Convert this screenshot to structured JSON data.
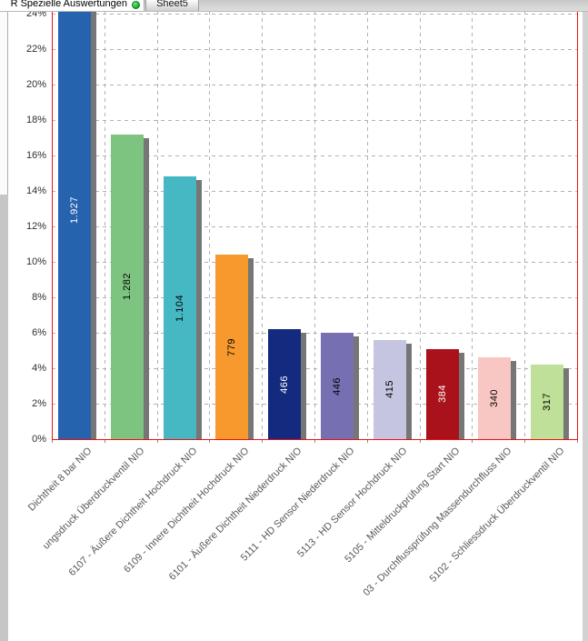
{
  "tab_bar": {
    "tabs": [
      {
        "label": "R Spezielle Auswertungen",
        "active": true,
        "status_icon": "green-circle"
      },
      {
        "label": "Sheet5",
        "active": false
      }
    ],
    "status_icon_color": "#14a82e"
  },
  "chart_data": {
    "type": "bar",
    "title": "",
    "xlabel": "",
    "ylabel": "",
    "y_unit": "%",
    "ylim_visible": [
      0,
      24
    ],
    "y_tick_step": 2,
    "grid": "dashed-gray",
    "legend": "none",
    "plot_border_color": "#ee1111",
    "bar_shadow_color": "#767676",
    "categories": [
      "Dichtheit 8 bar NIO",
      "ungsdruck Überdruckventil NIO",
      "6107 - Äußere Dichtheit Hochdruck NIO",
      "6109 - Innere Dichtheit Hochdruck NIO",
      "6101 - Äußere Dichtheit Niederdruck NIO",
      "5111 - HD Sensor Niederdruck NIO",
      "5113 - HD Sensor Hochdruck NIO",
      "5105 - Mitteldruckprüfung Start NIO",
      "03 - Durchflussprüfung Massendurchfluss NIO",
      "5102 - Schliessdruck Überdruckventil NIO"
    ],
    "values": [
      1927,
      1282,
      1104,
      779,
      466,
      446,
      415,
      384,
      340,
      317
    ],
    "value_labels": [
      "1.927",
      "1.282",
      "1.104",
      "779",
      "466",
      "446",
      "415",
      "384",
      "340",
      "317"
    ],
    "share_pct": [
      25.8,
      17.2,
      14.8,
      10.4,
      6.2,
      6.0,
      5.6,
      5.1,
      4.6,
      4.2
    ],
    "bar_colors": [
      "#2563ae",
      "#7cc47f",
      "#45b8c4",
      "#f8992e",
      "#142a7e",
      "#7670b3",
      "#c5c4e1",
      "#a9121b",
      "#f8c7c3",
      "#bfe098"
    ],
    "value_label_colors": [
      "#ffffff",
      "#000000",
      "#000000",
      "#000000",
      "#ffffff",
      "#000000",
      "#000000",
      "#ffffff",
      "#000000",
      "#000000"
    ],
    "note": "y axis shows percent share, bars are labeled with absolute counts"
  }
}
